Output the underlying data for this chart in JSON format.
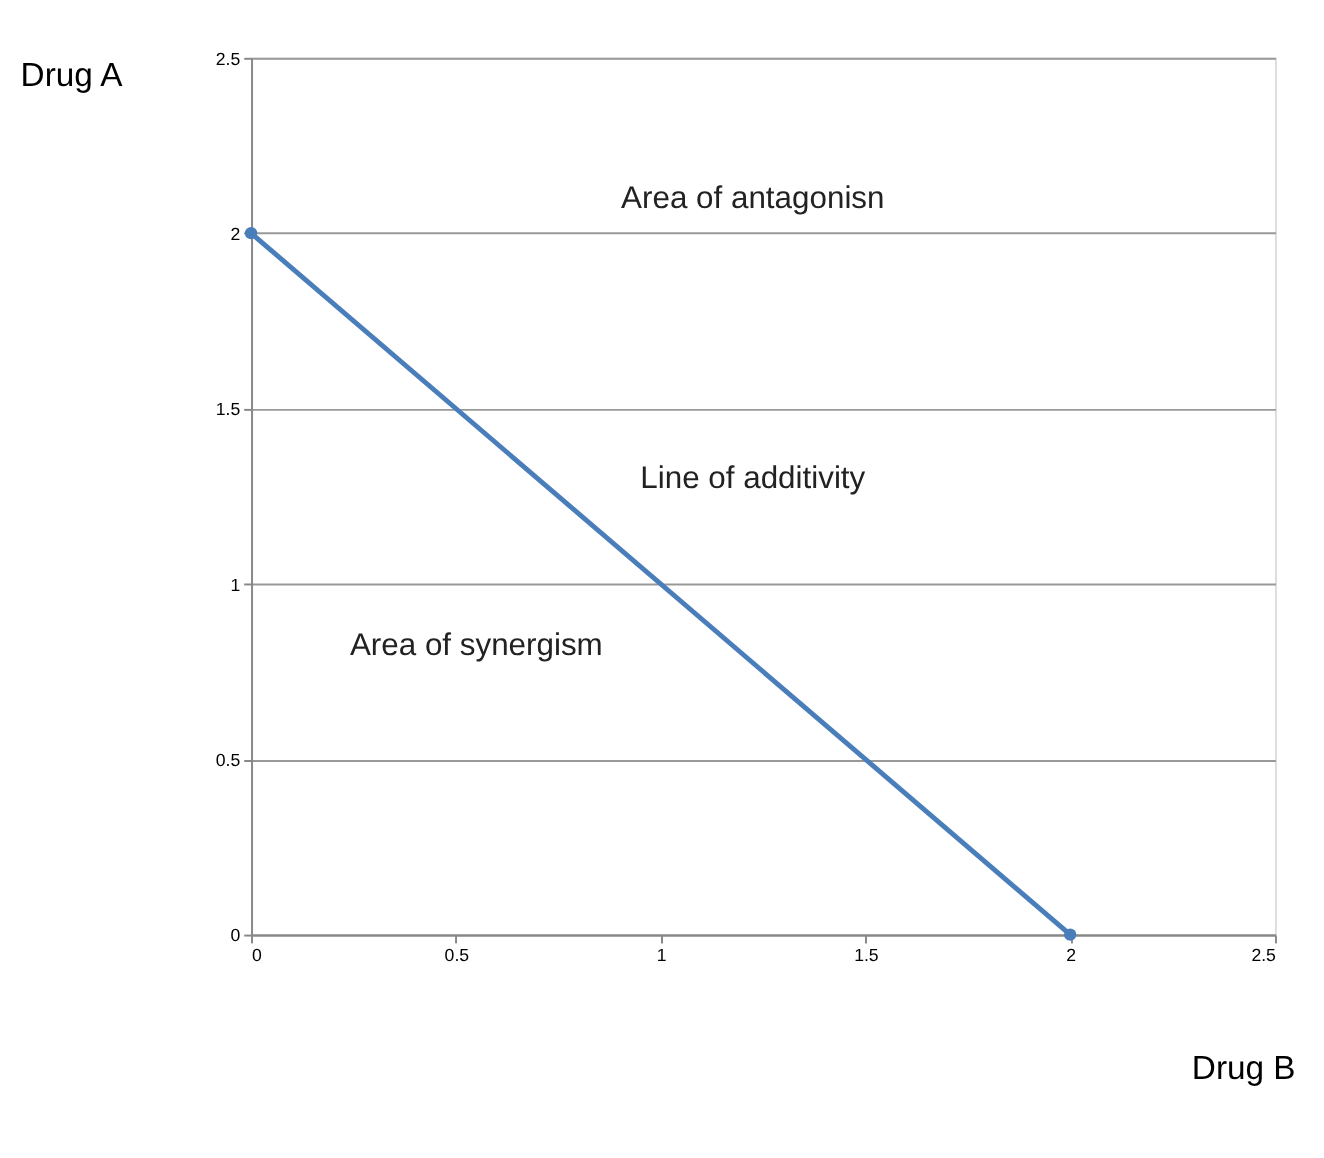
{
  "chart_data": {
    "type": "line",
    "xlabel": "Drug B",
    "ylabel": "Drug A",
    "x": [
      0,
      2
    ],
    "series": [
      {
        "color": "#4a7ebb",
        "values": [
          2,
          0
        ]
      }
    ],
    "marker": "circle",
    "line_style": "solid",
    "xlim": [
      0,
      2.5
    ],
    "xticks": [
      0,
      0.5,
      1,
      1.5,
      2,
      2.5
    ],
    "ylim": [
      0,
      2.5
    ],
    "yticks": [
      0,
      0.5,
      1,
      1.5,
      2,
      2.5
    ],
    "grid": "y",
    "annotations": [
      "Area of antagonisn",
      "Line of additivity",
      "Area of synergism"
    ]
  }
}
